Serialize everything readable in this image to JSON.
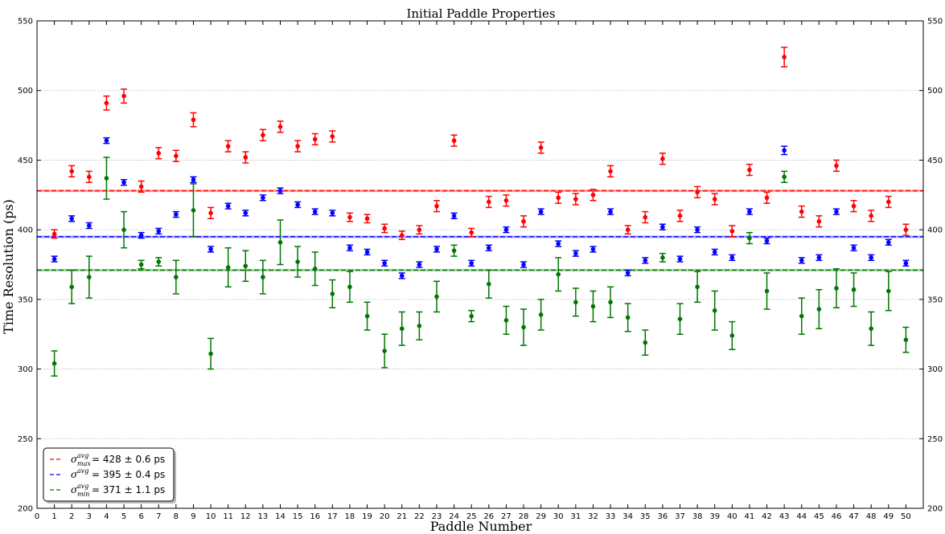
{
  "chart_data": {
    "type": "scatter",
    "title": "Initial Paddle Properties",
    "xlabel": "Paddle Number",
    "ylabel": "Time Resolution (ps)",
    "xlim": [
      0,
      51
    ],
    "ylim": [
      200,
      550
    ],
    "x_ticks": [
      0,
      1,
      2,
      3,
      4,
      5,
      6,
      7,
      8,
      9,
      10,
      11,
      12,
      13,
      14,
      15,
      16,
      17,
      18,
      19,
      20,
      21,
      22,
      23,
      24,
      25,
      26,
      27,
      28,
      29,
      30,
      31,
      32,
      33,
      34,
      35,
      36,
      37,
      38,
      39,
      40,
      41,
      42,
      43,
      44,
      45,
      46,
      47,
      48,
      49,
      50
    ],
    "y_ticks": [
      200,
      250,
      300,
      350,
      400,
      450,
      500,
      550
    ],
    "grid": "horizontal dotted",
    "legend_position": "bottom-left",
    "x": [
      1,
      2,
      3,
      4,
      5,
      6,
      7,
      8,
      9,
      10,
      11,
      12,
      13,
      14,
      15,
      16,
      17,
      18,
      19,
      20,
      21,
      22,
      23,
      24,
      25,
      26,
      27,
      28,
      29,
      30,
      31,
      32,
      33,
      34,
      35,
      36,
      37,
      38,
      39,
      40,
      41,
      42,
      43,
      44,
      45,
      46,
      47,
      48,
      49,
      50
    ],
    "series": [
      {
        "name": "max",
        "color": "#ff0000",
        "values": [
          397,
          442,
          438,
          491,
          496,
          431,
          455,
          453,
          479,
          412,
          460,
          452,
          468,
          474,
          460,
          465,
          467,
          409,
          408,
          401,
          396,
          400,
          417,
          464,
          398,
          420,
          421,
          406,
          459,
          423,
          422,
          425,
          442,
          400,
          409,
          451,
          410,
          427,
          422,
          399,
          443,
          423,
          524,
          413,
          406,
          446,
          417,
          410,
          420,
          400
        ],
        "errors": [
          3,
          4,
          4,
          5,
          5,
          4,
          4,
          4,
          5,
          4,
          4,
          4,
          4,
          4,
          4,
          4,
          4,
          3,
          3,
          3,
          3,
          3,
          4,
          4,
          3,
          4,
          4,
          4,
          4,
          4,
          4,
          4,
          4,
          3,
          4,
          4,
          4,
          4,
          4,
          4,
          4,
          4,
          7,
          4,
          4,
          4,
          4,
          4,
          4,
          4
        ]
      },
      {
        "name": "avg",
        "color": "#0000ff",
        "values": [
          379,
          408,
          403,
          464,
          434,
          396,
          399,
          411,
          436,
          386,
          417,
          412,
          423,
          428,
          418,
          413,
          412,
          387,
          384,
          376,
          367,
          375,
          386,
          410,
          376,
          387,
          400,
          375,
          413,
          390,
          383,
          386,
          413,
          369,
          378,
          402,
          379,
          400,
          384,
          380,
          413,
          392,
          457,
          378,
          380,
          413,
          387,
          380,
          391,
          376
        ],
        "errors": [
          2,
          2,
          2,
          2,
          2,
          2,
          2,
          2,
          2,
          2,
          2,
          2,
          2,
          2,
          2,
          2,
          2,
          2,
          2,
          2,
          2,
          2,
          2,
          2,
          2,
          2,
          2,
          2,
          2,
          2,
          2,
          2,
          2,
          2,
          2,
          2,
          2,
          2,
          2,
          2,
          2,
          2,
          3,
          2,
          2,
          2,
          2,
          2,
          2,
          2
        ]
      },
      {
        "name": "min",
        "color": "#007700",
        "values": [
          304,
          359,
          366,
          437,
          400,
          375,
          377,
          366,
          414,
          311,
          373,
          374,
          366,
          391,
          377,
          372,
          354,
          359,
          338,
          313,
          329,
          331,
          352,
          385,
          338,
          361,
          335,
          330,
          339,
          368,
          348,
          345,
          348,
          337,
          319,
          380,
          336,
          359,
          342,
          324,
          394,
          356,
          438,
          338,
          343,
          358,
          357,
          329,
          356,
          321
        ],
        "errors": [
          9,
          12,
          15,
          15,
          13,
          3,
          3,
          12,
          19,
          11,
          14,
          11,
          12,
          16,
          11,
          12,
          10,
          11,
          10,
          12,
          12,
          10,
          11,
          4,
          4,
          10,
          10,
          13,
          11,
          12,
          10,
          11,
          11,
          10,
          9,
          3,
          11,
          11,
          14,
          10,
          4,
          13,
          4,
          13,
          14,
          14,
          12,
          12,
          14,
          9
        ]
      }
    ],
    "hlines": [
      {
        "value": 428,
        "color": "#ff0000"
      },
      {
        "value": 395,
        "color": "#0000ff"
      },
      {
        "value": 371,
        "color": "#007700"
      }
    ],
    "legend": [
      {
        "sym": "σ",
        "sup": "avg",
        "sub": "max",
        "text": " = 428 ± 0.6 ps",
        "color": "#ff0000"
      },
      {
        "sym": "σ",
        "sup": "avg",
        "sub": "",
        "text": " = 395 ± 0.4 ps",
        "color": "#0000ff"
      },
      {
        "sym": "σ",
        "sup": "avg",
        "sub": "min",
        "text": " = 371 ± 1.1 ps",
        "color": "#007700"
      }
    ]
  }
}
